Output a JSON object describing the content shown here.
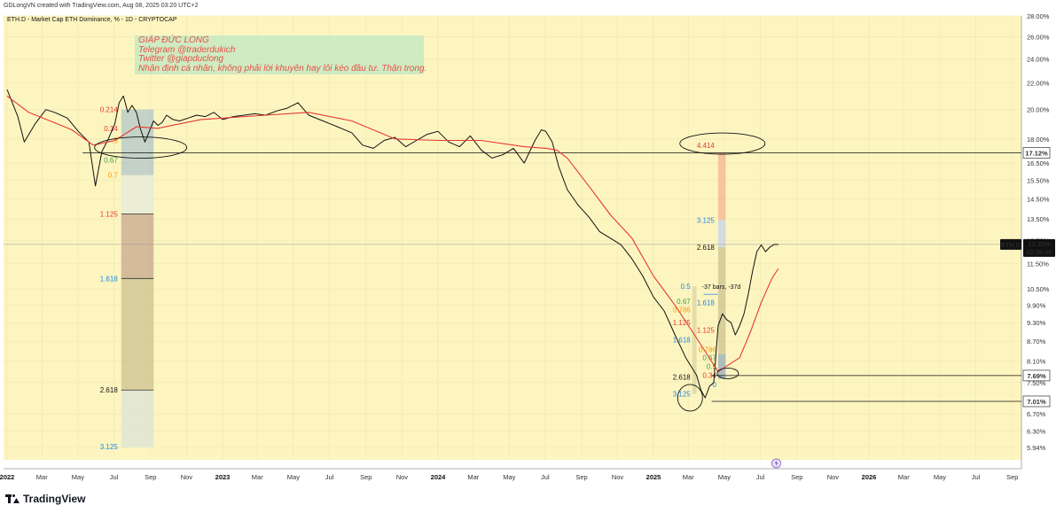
{
  "header": {
    "credit": "GDLongVN created with TradingView.com, Aug 08, 2025 03:20 UTC+2"
  },
  "chart_data": {
    "type": "line",
    "title": "ETH.D - Market Cap ETH Dominance, % - 1D - CRYPTOCAP",
    "symbol": "ETH.D",
    "last_value": 12.32,
    "last_value_label": "12.32%",
    "countdown": "22:39:46",
    "y_scale": "log",
    "ylim": [
      5.94,
      28.0
    ],
    "y_ticks": [
      "28.00%",
      "26.00%",
      "24.00%",
      "22.00%",
      "20.00%",
      "18.00%",
      "16.50%",
      "15.50%",
      "14.50%",
      "13.50%",
      "12.50%",
      "11.50%",
      "10.50%",
      "9.90%",
      "9.30%",
      "8.70%",
      "8.10%",
      "7.50%",
      "6.70%",
      "6.30%",
      "5.94%"
    ],
    "x_ticks": [
      {
        "label": "2022",
        "t": 0.0,
        "bold": true
      },
      {
        "label": "Mar",
        "t": 0.1616
      },
      {
        "label": "May",
        "t": 0.3288
      },
      {
        "label": "Jul",
        "t": 0.4959
      },
      {
        "label": "Sep",
        "t": 0.6658
      },
      {
        "label": "Nov",
        "t": 0.8329
      },
      {
        "label": "2023",
        "t": 1.0,
        "bold": true
      },
      {
        "label": "Mar",
        "t": 1.1616
      },
      {
        "label": "May",
        "t": 1.3288
      },
      {
        "label": "Jul",
        "t": 1.4959
      },
      {
        "label": "Sep",
        "t": 1.6658
      },
      {
        "label": "Nov",
        "t": 1.8329
      },
      {
        "label": "2024",
        "t": 2.0,
        "bold": true
      },
      {
        "label": "Mar",
        "t": 2.1639
      },
      {
        "label": "May",
        "t": 2.3306
      },
      {
        "label": "Jul",
        "t": 2.4973
      },
      {
        "label": "Sep",
        "t": 2.6667
      },
      {
        "label": "Nov",
        "t": 2.8333
      },
      {
        "label": "2025",
        "t": 3.0,
        "bold": true
      },
      {
        "label": "Mar",
        "t": 3.1616
      },
      {
        "label": "May",
        "t": 3.3288
      },
      {
        "label": "Jul",
        "t": 3.4959
      },
      {
        "label": "Sep",
        "t": 3.6658
      },
      {
        "label": "Nov",
        "t": 3.8329
      },
      {
        "label": "2026",
        "t": 4.0,
        "bold": true
      },
      {
        "label": "Mar",
        "t": 4.1616
      },
      {
        "label": "May",
        "t": 4.3288
      },
      {
        "label": "Jul",
        "t": 4.4959
      },
      {
        "label": "Sep",
        "t": 4.6658
      }
    ],
    "series": [
      {
        "color": "#111111",
        "x": [
          0.0,
          0.05,
          0.08,
          0.13,
          0.18,
          0.22,
          0.28,
          0.33,
          0.38,
          0.41,
          0.44,
          0.47,
          0.5,
          0.52,
          0.54,
          0.56,
          0.58,
          0.6,
          0.62,
          0.64,
          0.66,
          0.68,
          0.7,
          0.72,
          0.74,
          0.77,
          0.8,
          0.84,
          0.88,
          0.92,
          0.96,
          1.0,
          1.05,
          1.1,
          1.15,
          1.2,
          1.25,
          1.3,
          1.35,
          1.4,
          1.45,
          1.5,
          1.55,
          1.6,
          1.65,
          1.7,
          1.75,
          1.8,
          1.85,
          1.9,
          1.95,
          2.0,
          2.05,
          2.1,
          2.15,
          2.2,
          2.25,
          2.3,
          2.35,
          2.4,
          2.45,
          2.48,
          2.5,
          2.53,
          2.56,
          2.6,
          2.65,
          2.7,
          2.75,
          2.8,
          2.85,
          2.9,
          2.95,
          3.0,
          3.05,
          3.1,
          3.15,
          3.2,
          3.22,
          3.24,
          3.26,
          3.28,
          3.3,
          3.32,
          3.34,
          3.36,
          3.38,
          3.4,
          3.42,
          3.44,
          3.46,
          3.48,
          3.5,
          3.52,
          3.54,
          3.56,
          3.58
        ],
        "y": [
          21.5,
          19.5,
          17.8,
          19.0,
          20.0,
          19.8,
          19.4,
          18.5,
          17.8,
          15.2,
          17.2,
          18.0,
          19.0,
          20.5,
          21.0,
          19.8,
          20.3,
          19.8,
          18.6,
          17.8,
          18.5,
          19.2,
          18.9,
          19.1,
          19.6,
          19.3,
          19.2,
          19.4,
          19.6,
          19.5,
          19.8,
          19.3,
          19.5,
          19.6,
          19.7,
          19.6,
          19.9,
          20.1,
          20.5,
          19.6,
          19.3,
          19.0,
          18.7,
          18.4,
          17.6,
          17.4,
          17.9,
          18.1,
          17.5,
          17.9,
          18.3,
          18.5,
          17.8,
          17.5,
          18.2,
          17.3,
          16.8,
          17.0,
          17.4,
          16.5,
          17.9,
          18.6,
          18.5,
          17.8,
          16.3,
          15.0,
          14.2,
          13.6,
          12.9,
          12.6,
          12.3,
          11.7,
          11.0,
          10.2,
          9.7,
          8.9,
          8.2,
          7.7,
          7.3,
          7.1,
          7.4,
          7.5,
          9.2,
          9.6,
          9.4,
          9.3,
          8.9,
          9.2,
          9.6,
          10.3,
          11.2,
          12.0,
          12.3,
          12.0,
          12.2,
          12.32,
          12.32
        ]
      },
      {
        "color": "#e53935",
        "x": [
          0.0,
          0.1,
          0.2,
          0.3,
          0.4,
          0.5,
          0.6,
          0.7,
          0.8,
          0.9,
          1.0,
          1.2,
          1.4,
          1.6,
          1.8,
          2.0,
          2.2,
          2.4,
          2.5,
          2.55,
          2.6,
          2.7,
          2.8,
          2.9,
          3.0,
          3.1,
          3.2,
          3.3,
          3.4,
          3.45,
          3.5,
          3.55,
          3.58
        ],
        "y": [
          21.0,
          19.8,
          19.2,
          18.6,
          17.6,
          17.9,
          18.8,
          18.7,
          19.0,
          19.3,
          19.4,
          19.6,
          19.8,
          19.2,
          18.0,
          17.9,
          17.9,
          17.5,
          17.4,
          17.3,
          16.8,
          15.2,
          13.7,
          12.6,
          11.0,
          9.9,
          8.8,
          7.8,
          8.2,
          9.0,
          10.0,
          10.9,
          11.3
        ]
      }
    ],
    "horizontal_lines": [
      {
        "value": 17.12,
        "label": "17.12%",
        "color": "#111111"
      },
      {
        "value": 7.69,
        "label": "7.69%",
        "color": "#111111"
      },
      {
        "value": 7.01,
        "label": "7.01%",
        "color": "#111111"
      },
      {
        "value": 12.32,
        "color": "#999999"
      }
    ],
    "fib_left": {
      "levels": [
        {
          "label": "0.214",
          "value": 20.0,
          "color": "#e53935"
        },
        {
          "label": "0.34",
          "value": 18.7,
          "color": "#e53935"
        },
        {
          "label": ".5",
          "value": 17.9,
          "color": "#ff9800"
        },
        {
          "label": "0.67",
          "value": 16.7,
          "color": "#43a047"
        },
        {
          "label": "0.7",
          "value": 15.8,
          "color": "#ff9800"
        },
        {
          "label": "1.125",
          "value": 13.75,
          "color": "#e53935"
        },
        {
          "label": "1.618",
          "value": 10.9,
          "color": "#1e88e5"
        },
        {
          "label": "2.618",
          "value": 7.3,
          "color": "#111111"
        },
        {
          "label": "3.125",
          "value": 5.96,
          "color": "#1e88e5"
        }
      ]
    },
    "fib_right": {
      "levels": [
        {
          "label": "4.414",
          "value": 17.6,
          "color": "#e53935"
        },
        {
          "label": "3.125",
          "value": 13.45,
          "color": "#1e88e5"
        },
        {
          "label": "2.618",
          "value": 12.2,
          "color": "#111111"
        },
        {
          "label": "1.618",
          "value": 10.0,
          "color": "#1e88e5"
        },
        {
          "label": "1.125",
          "value": 9.05,
          "color": "#e53935"
        }
      ]
    },
    "fib_mid": {
      "levels": [
        {
          "label": "0.5",
          "value": 10.6,
          "color": "#1e88e5"
        },
        {
          "label": "0.67",
          "value": 10.05,
          "color": "#43a047"
        },
        {
          "label": "0.786",
          "value": 9.75,
          "color": "#ff9800"
        },
        {
          "label": "1.125",
          "value": 9.3,
          "color": "#e53935"
        },
        {
          "label": "1.618",
          "value": 8.75,
          "color": "#1e88e5"
        },
        {
          "label": "2.618",
          "value": 7.65,
          "color": "#111111"
        },
        {
          "label": "3.125",
          "value": 7.2,
          "color": "#1e88e5"
        }
      ]
    },
    "fib_small": {
      "levels": [
        {
          "label": "0.786",
          "value": 8.45,
          "color": "#ff9800"
        },
        {
          "label": "0.67",
          "value": 8.2,
          "color": "#43a047"
        },
        {
          "label": "0.5",
          "value": 7.95,
          "color": "#43a047"
        },
        {
          "label": "0.34",
          "value": 7.7,
          "color": "#e53935"
        },
        {
          "label": "0",
          "value": 7.45,
          "color": "#1e88e5"
        }
      ]
    },
    "measure_label": "-37 bars, -37d",
    "event_icon": "lightning-icon"
  },
  "note": {
    "lines": [
      "GIÁP ĐỨC LONG",
      "Telegram @traderdukich",
      "Twitter @giapduclong",
      "Nhận định cá nhân, không phải lời khuyên hay lôi kéo đầu tư. Thận trọng."
    ]
  },
  "footer": {
    "brand": "TradingView"
  },
  "colors": {
    "background": "#fdf5c0",
    "grid": "#efe6b0",
    "price": "#111111",
    "ma": "#e53935"
  }
}
